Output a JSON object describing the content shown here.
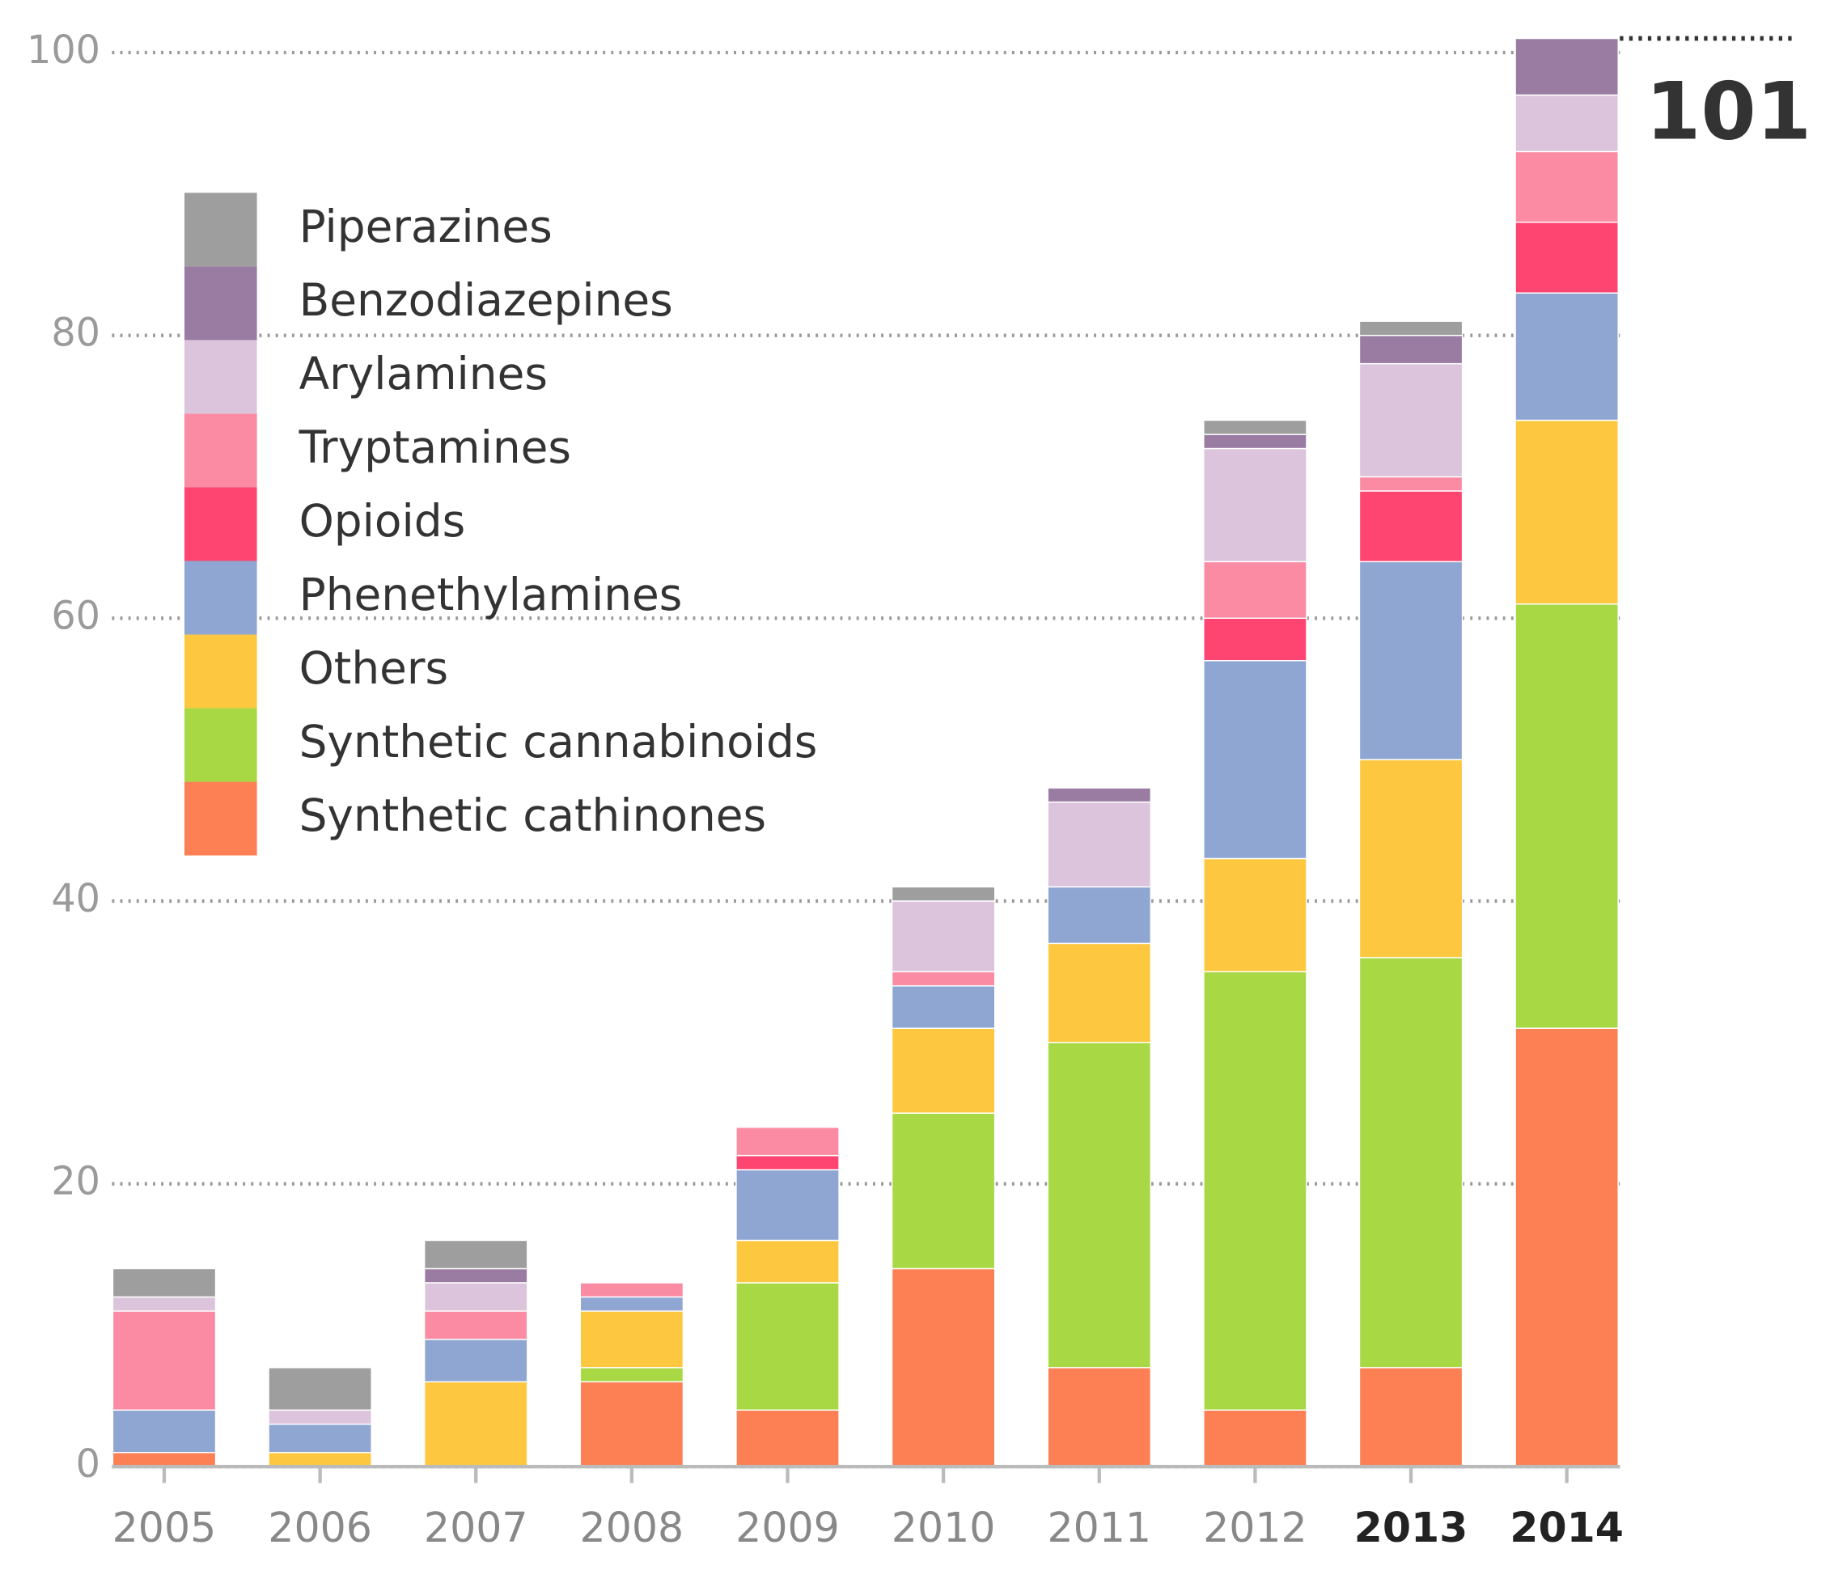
{
  "chart_data": {
    "type": "stacked_bar",
    "categories": [
      "2005",
      "2006",
      "2007",
      "2008",
      "2009",
      "2010",
      "2011",
      "2012",
      "2013",
      "2014"
    ],
    "emphasized_categories": [
      8,
      9
    ],
    "series": [
      {
        "name": "Synthetic cathinones",
        "color": "#fd7f54",
        "values": [
          1,
          0,
          0,
          6,
          4,
          14,
          7,
          4,
          7,
          31
        ]
      },
      {
        "name": "Synthetic cannabinoids",
        "color": "#a8d945",
        "values": [
          0,
          0,
          0,
          1,
          9,
          11,
          23,
          31,
          29,
          30
        ]
      },
      {
        "name": "Others",
        "color": "#fdc83f",
        "values": [
          0,
          1,
          6,
          4,
          3,
          6,
          7,
          8,
          14,
          13
        ]
      },
      {
        "name": "Phenethylamines",
        "color": "#8fa6d3",
        "values": [
          3,
          2,
          3,
          1,
          5,
          3,
          4,
          14,
          14,
          9
        ]
      },
      {
        "name": "Opioids",
        "color": "#fe4470",
        "values": [
          0,
          0,
          0,
          0,
          1,
          0,
          0,
          3,
          5,
          5
        ]
      },
      {
        "name": "Tryptamines",
        "color": "#fb8ba3",
        "values": [
          7,
          0,
          2,
          1,
          2,
          1,
          0,
          4,
          1,
          5
        ]
      },
      {
        "name": "Arylamines",
        "color": "#dcc4dc",
        "values": [
          1,
          1,
          2,
          0,
          0,
          5,
          6,
          8,
          8,
          4
        ]
      },
      {
        "name": "Benzodiazepines",
        "color": "#9a7ca3",
        "values": [
          0,
          0,
          1,
          0,
          0,
          0,
          1,
          1,
          2,
          4
        ]
      },
      {
        "name": "Piperazines",
        "color": "#9e9e9e",
        "values": [
          2,
          3,
          2,
          0,
          0,
          1,
          0,
          1,
          1,
          0
        ]
      }
    ],
    "annotation": {
      "text": "101",
      "y": 101
    },
    "ylim": [
      0,
      100
    ],
    "yticks": [
      0,
      20,
      40,
      60,
      80,
      100
    ],
    "grid": true
  }
}
